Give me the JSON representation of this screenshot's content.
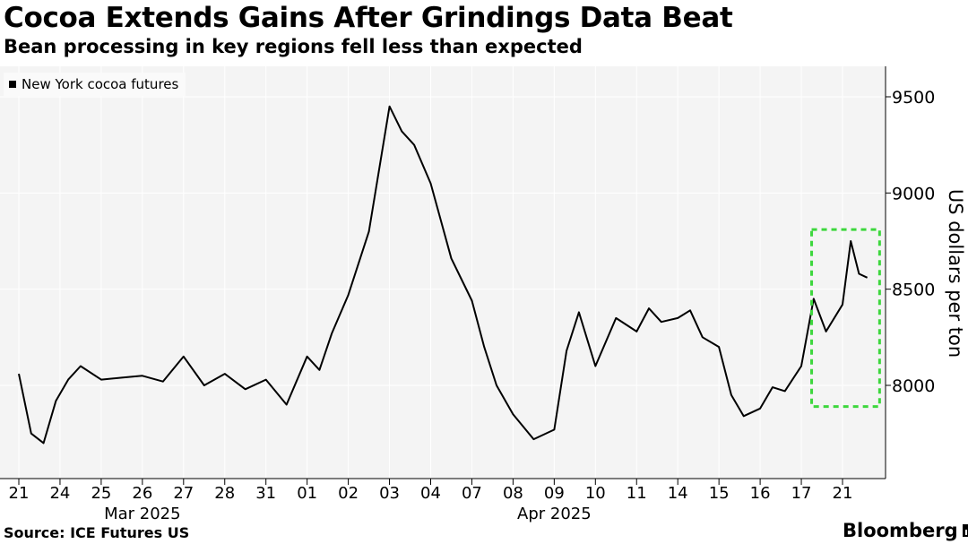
{
  "header": {
    "title": "Cocoa Extends Gains After Grindings Data Beat",
    "subtitle": "Bean processing in key regions fell less than expected"
  },
  "footer": {
    "source": "Source: ICE Futures US",
    "brand": "Bloomberg"
  },
  "chart_data": {
    "type": "line",
    "title": "Cocoa Extends Gains After Grindings Data Beat",
    "subtitle": "Bean processing in key regions fell less than expected",
    "xlabel": "",
    "ylabel": "US dollars per ton",
    "ylim": [
      7650,
      9650
    ],
    "yticks": [
      8000,
      8500,
      9000,
      9500
    ],
    "ytick_labels": [
      "8000",
      "8500",
      "9000",
      "9500"
    ],
    "grid": true,
    "legend_position": "top-left",
    "x_tick_labels": [
      "21",
      "24",
      "25",
      "26",
      "27",
      "28",
      "31",
      "01",
      "02",
      "03",
      "04",
      "07",
      "08",
      "09",
      "10",
      "11",
      "14",
      "15",
      "16",
      "17",
      "21"
    ],
    "x_month_labels": [
      {
        "label": "Mar 2025",
        "at_tick": 3
      },
      {
        "label": "Apr 2025",
        "at_tick": 13
      }
    ],
    "series": [
      {
        "name": "New York cocoa futures",
        "color": "#000000",
        "x": [
          0,
          0.3,
          0.6,
          0.9,
          1.2,
          1.5,
          2,
          2.5,
          3,
          3.5,
          4,
          4.5,
          5,
          5.5,
          6,
          6.5,
          7,
          7.3,
          7.6,
          8,
          8.5,
          9,
          9.3,
          9.6,
          10,
          10.5,
          11,
          11.3,
          11.6,
          12,
          12.5,
          13,
          13.3,
          13.6,
          14,
          14.5,
          15,
          15.3,
          15.6,
          16,
          16.3,
          16.6,
          17,
          17.3,
          17.6,
          18,
          18.3,
          18.6,
          19,
          19.3,
          19.6,
          20,
          20.2,
          20.4,
          20.6
        ],
        "values": [
          8060,
          7750,
          7700,
          7920,
          8030,
          8100,
          8030,
          8040,
          8050,
          8020,
          8150,
          8000,
          8060,
          7980,
          8030,
          7900,
          8150,
          8080,
          8270,
          8470,
          8800,
          9450,
          9320,
          9250,
          9050,
          8660,
          8440,
          8200,
          8000,
          7850,
          7720,
          7770,
          8180,
          8380,
          8100,
          8350,
          8280,
          8400,
          8330,
          8350,
          8390,
          8250,
          8200,
          7950,
          7840,
          7880,
          7990,
          7970,
          8100,
          8450,
          8280,
          8420,
          8750,
          8580,
          8560
        ]
      }
    ],
    "annotations": [
      {
        "type": "highlight-box",
        "color": "#3dd73d",
        "style": "dashed",
        "x_range": [
          19.25,
          20.9
        ],
        "y_range": [
          7890,
          8810
        ]
      }
    ]
  }
}
